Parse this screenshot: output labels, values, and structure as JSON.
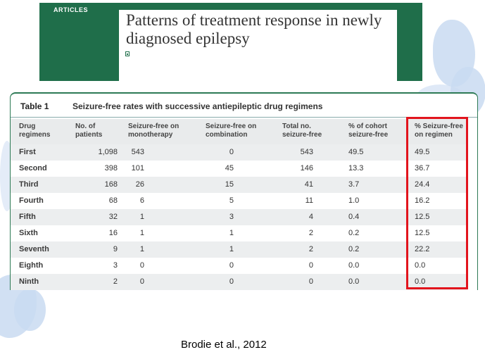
{
  "article": {
    "section": "ARTICLES",
    "title_line1": "Patterns of treatment response in newly",
    "title_line2": "diagnosed epilepsy"
  },
  "table": {
    "label": "Table 1",
    "caption": "Seizure-free rates with successive antiepileptic drug regimens",
    "headers": [
      [
        "Drug",
        "regimens"
      ],
      [
        "No. of",
        "patients"
      ],
      [
        "Seizure-free on",
        "monotherapy"
      ],
      [
        "Seizure-free on",
        "combination"
      ],
      [
        "Total no.",
        "seizure-free"
      ],
      [
        "% of cohort",
        "seizure-free"
      ],
      [
        "% Seizure-free",
        "on regimen"
      ]
    ],
    "rows": [
      [
        "First",
        "1,098",
        "543",
        "0",
        "543",
        "49.5",
        "49.5"
      ],
      [
        "Second",
        "398",
        "101",
        "45",
        "146",
        "13.3",
        "36.7"
      ],
      [
        "Third",
        "168",
        "26",
        "15",
        "41",
        "3.7",
        "24.4"
      ],
      [
        "Fourth",
        "68",
        "6",
        "5",
        "11",
        "1.0",
        "16.2"
      ],
      [
        "Fifth",
        "32",
        "1",
        "3",
        "4",
        "0.4",
        "12.5"
      ],
      [
        "Sixth",
        "16",
        "1",
        "1",
        "2",
        "0.2",
        "12.5"
      ],
      [
        "Seventh",
        "9",
        "1",
        "1",
        "2",
        "0.2",
        "22.2"
      ],
      [
        "Eighth",
        "3",
        "0",
        "0",
        "0",
        "0.0",
        "0.0"
      ],
      [
        "Ninth",
        "2",
        "0",
        "0",
        "0",
        "0.0",
        "0.0"
      ]
    ]
  },
  "citation": "Brodie et al., 2012",
  "colors": {
    "article_green": "#1f6e4a",
    "highlight_red": "#e2141d",
    "swirl_blue": "#c9daf1"
  }
}
